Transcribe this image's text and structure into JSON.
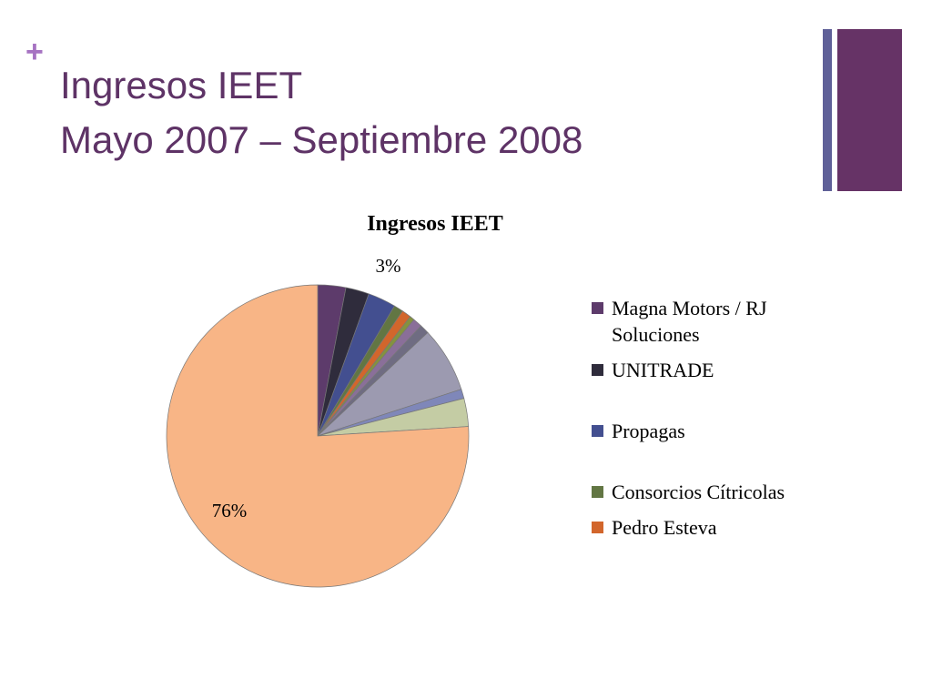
{
  "header": {
    "mark": "+",
    "title_line1": "Ingresos IEET",
    "title_line2": "Mayo 2007 – Septiembre 2008"
  },
  "chart_data": {
    "type": "pie",
    "title": "Ingresos IEET",
    "categories": [
      "Magna Motors / RJ Soluciones",
      "UNITRADE",
      "Propagas",
      "Consorcios Cítricolas",
      "Pedro Esteva",
      null,
      null,
      null,
      null,
      null,
      null,
      null
    ],
    "values": [
      3,
      2.5,
      3,
      1,
      1,
      0.5,
      1,
      1,
      7,
      1,
      3,
      76
    ],
    "value_labels": [
      "3%",
      null,
      null,
      null,
      null,
      null,
      null,
      null,
      null,
      null,
      null,
      "76%"
    ],
    "colors": [
      "#5d3b6b",
      "#2f2c3c",
      "#434f90",
      "#627643",
      "#d2662c",
      "#84923f",
      "#8a6f99",
      "#6f6c82",
      "#9c9ab0",
      "#7f87b9",
      "#c4cca4",
      "#f8b586"
    ],
    "legend": "right"
  }
}
